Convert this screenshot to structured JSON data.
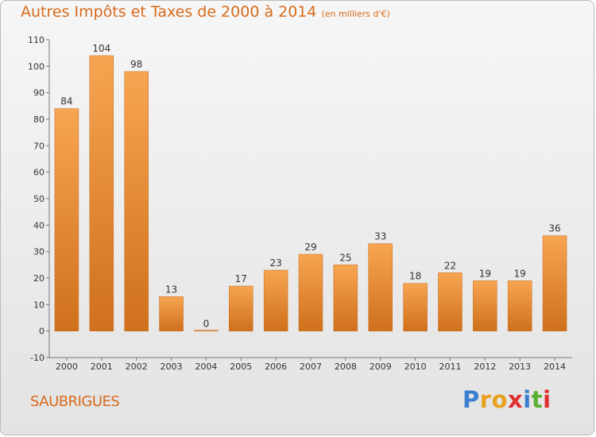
{
  "chart_data": {
    "type": "bar",
    "title": "Autres Impôts et Taxes de 2000 à 2014",
    "subtitle": "(en milliers d'€)",
    "categories": [
      "2000",
      "2001",
      "2002",
      "2003",
      "2004",
      "2005",
      "2006",
      "2007",
      "2008",
      "2009",
      "2010",
      "2011",
      "2012",
      "2013",
      "2014"
    ],
    "values": [
      84,
      104,
      98,
      13,
      0,
      17,
      23,
      29,
      25,
      33,
      18,
      22,
      19,
      19,
      36
    ],
    "ylim": [
      -10,
      110
    ],
    "yticks": [
      -10,
      0,
      10,
      20,
      30,
      40,
      50,
      60,
      70,
      80,
      90,
      100,
      110
    ],
    "xlabel": "",
    "ylabel": "",
    "grid": false,
    "colors": {
      "bar_light": "#f7a552",
      "bar_dark": "#cf701c",
      "title": "#d86a1c"
    }
  },
  "commune": "SAUBRIGUES",
  "logo": {
    "text": "Proxiti",
    "letters": [
      {
        "ch": "P",
        "color": "#3a7fd0"
      },
      {
        "ch": "r",
        "color": "#e8a020"
      },
      {
        "ch": "o",
        "color": "#e8a020"
      },
      {
        "ch": "x",
        "color": "#e03030"
      },
      {
        "ch": "i",
        "color": "#3a7fd0"
      },
      {
        "ch": "t",
        "color": "#58b030"
      },
      {
        "ch": "i",
        "color": "#e03030"
      }
    ]
  }
}
